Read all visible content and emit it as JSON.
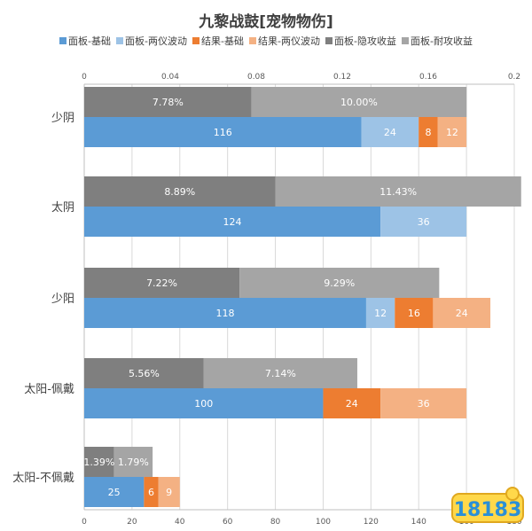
{
  "chart_data": {
    "type": "bar",
    "orientation": "horizontal",
    "stacked": true,
    "title": "九黎战鼓[宠物物伤]",
    "legend_position": "top",
    "categories": [
      "少阴",
      "太阴",
      "少阳",
      "太阳-佩戴",
      "太阳-不佩戴"
    ],
    "top_axis": {
      "ticks": [
        "0",
        "0.04",
        "0.08",
        "0.12",
        "0.16",
        "0.2"
      ],
      "range": [
        0,
        0.2
      ]
    },
    "bottom_axis": {
      "ticks": [
        "0",
        "20",
        "40",
        "60",
        "80",
        "100",
        "120",
        "140",
        "160",
        "180"
      ],
      "range": [
        0,
        180
      ]
    },
    "grid": true,
    "colors": {
      "base": "#5b9bd5",
      "dual_wave": "#9dc3e6",
      "result_base": "#ed7d31",
      "result_dual_wave": "#f4b183",
      "hidden_atk": "#7f7f7f",
      "endurance": "#a5a5a5"
    },
    "series": [
      {
        "key": "base",
        "name": "面板-基础",
        "axis": "bottom",
        "group": "value",
        "values": [
          116,
          124,
          118,
          100,
          25
        ],
        "labels": [
          "116",
          "124",
          "118",
          "100",
          "25"
        ]
      },
      {
        "key": "dual_wave",
        "name": "面板-两仪波动",
        "axis": "bottom",
        "group": "value",
        "values": [
          24,
          36,
          12,
          0,
          0
        ],
        "labels": [
          "24",
          "36",
          "12",
          "",
          ""
        ]
      },
      {
        "key": "result_base",
        "name": "结果-基础",
        "axis": "bottom",
        "group": "value",
        "values": [
          8,
          0,
          16,
          24,
          6
        ],
        "labels": [
          "8",
          "",
          "16",
          "24",
          "6"
        ]
      },
      {
        "key": "result_dual_wave",
        "name": "结果-两仪波动",
        "axis": "bottom",
        "group": "value",
        "values": [
          12,
          0,
          24,
          36,
          9
        ],
        "labels": [
          "12",
          "",
          "24",
          "36",
          "9"
        ]
      },
      {
        "key": "hidden_atk",
        "name": "面板-隐攻收益",
        "axis": "top",
        "group": "pct",
        "values": [
          0.0778,
          0.0889,
          0.0722,
          0.0556,
          0.0139
        ],
        "labels": [
          "7.78%",
          "8.89%",
          "7.22%",
          "5.56%",
          "1.39%"
        ]
      },
      {
        "key": "endurance",
        "name": "面板-耐攻收益",
        "axis": "top",
        "group": "pct",
        "values": [
          0.1,
          0.1143,
          0.0929,
          0.0714,
          0.0179
        ],
        "labels": [
          "10.00%",
          "11.43%",
          "9.29%",
          "7.14%",
          "1.79%"
        ]
      }
    ]
  },
  "watermark": {
    "text": "18183"
  }
}
